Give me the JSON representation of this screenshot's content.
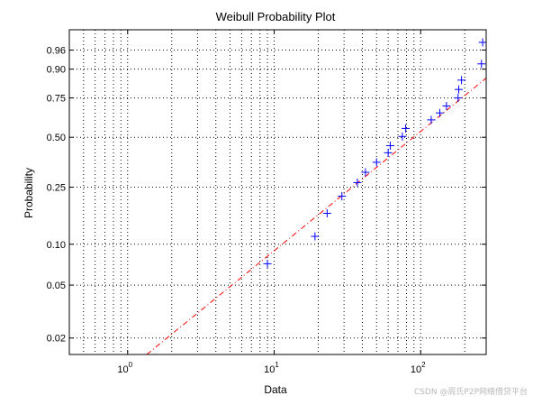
{
  "chart_data": {
    "type": "scatter",
    "title": "Weibull Probability Plot",
    "xlabel": "Data",
    "ylabel": "Probability",
    "x_scale": "log",
    "y_scale": "weibull",
    "xlim": [
      0.4,
      280
    ],
    "ylim": [
      0.015,
      0.99
    ],
    "x_ticks": [
      {
        "value": 1,
        "base": "10",
        "exp": "0"
      },
      {
        "value": 10,
        "base": "10",
        "exp": "1"
      },
      {
        "value": 100,
        "base": "10",
        "exp": "2"
      }
    ],
    "y_ticks": [
      {
        "value": 0.02,
        "label": "0.02"
      },
      {
        "value": 0.05,
        "label": "0.05"
      },
      {
        "value": 0.1,
        "label": "0.10"
      },
      {
        "value": 0.25,
        "label": "0.25"
      },
      {
        "value": 0.5,
        "label": "0.50"
      },
      {
        "value": 0.75,
        "label": "0.75"
      },
      {
        "value": 0.9,
        "label": "0.90"
      },
      {
        "value": 0.96,
        "label": "0.96"
      }
    ],
    "grid": true,
    "points": [
      {
        "x": 9,
        "y": 0.072
      },
      {
        "x": 19,
        "y": 0.114
      },
      {
        "x": 23,
        "y": 0.166
      },
      {
        "x": 29,
        "y": 0.218
      },
      {
        "x": 37,
        "y": 0.268
      },
      {
        "x": 42,
        "y": 0.312
      },
      {
        "x": 50,
        "y": 0.36
      },
      {
        "x": 60,
        "y": 0.41
      },
      {
        "x": 62,
        "y": 0.45
      },
      {
        "x": 75,
        "y": 0.505
      },
      {
        "x": 79,
        "y": 0.555
      },
      {
        "x": 118,
        "y": 0.61
      },
      {
        "x": 135,
        "y": 0.655
      },
      {
        "x": 150,
        "y": 0.7
      },
      {
        "x": 180,
        "y": 0.75
      },
      {
        "x": 182,
        "y": 0.8
      },
      {
        "x": 190,
        "y": 0.85
      },
      {
        "x": 260,
        "y": 0.92
      },
      {
        "x": 265,
        "y": 0.975
      }
    ],
    "fit_line": {
      "x": [
        1.35,
        280
      ],
      "y": [
        0.015,
        0.86
      ]
    },
    "colors": {
      "points": "#0000ff",
      "fit_line": "#ff0000",
      "grid": "#000000",
      "axes": "#000000"
    }
  },
  "watermark": "CSDN @周氏P2P网络借贷平台"
}
